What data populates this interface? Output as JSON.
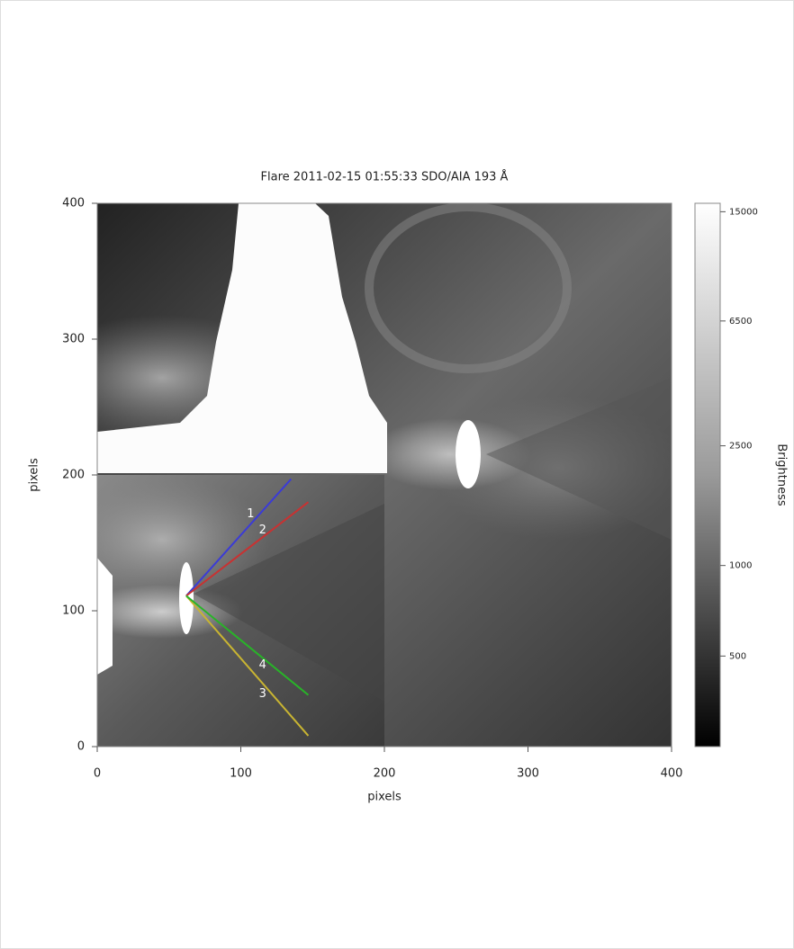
{
  "chart_data": {
    "type": "image",
    "title": "Flare 2011-02-15 01:55:33  SDO/AIA 193 Å",
    "xlabel": "pixels",
    "ylabel": "pixels",
    "xlim": [
      0,
      400
    ],
    "ylim": [
      0,
      400
    ],
    "xticks": [
      0,
      100,
      200,
      300,
      400
    ],
    "yticks": [
      0,
      100,
      200,
      300,
      400
    ],
    "colorbar": {
      "label": "Brightness",
      "clim": [
        250,
        16000
      ],
      "log": true,
      "ticks": [
        15000,
        6500,
        2500,
        1000,
        500
      ]
    },
    "lines": [
      {
        "name": "1",
        "color": "#3b3bd6",
        "x": [
          62,
          135
        ],
        "y": [
          111,
          197
        ]
      },
      {
        "name": "2",
        "color": "#c83232",
        "x": [
          62,
          147
        ],
        "y": [
          111,
          180
        ]
      },
      {
        "name": "3",
        "color": "#c8b432",
        "x": [
          62,
          147
        ],
        "y": [
          111,
          8
        ]
      },
      {
        "name": "4",
        "color": "#28b428",
        "x": [
          62,
          147
        ],
        "y": [
          111,
          38
        ]
      }
    ]
  }
}
